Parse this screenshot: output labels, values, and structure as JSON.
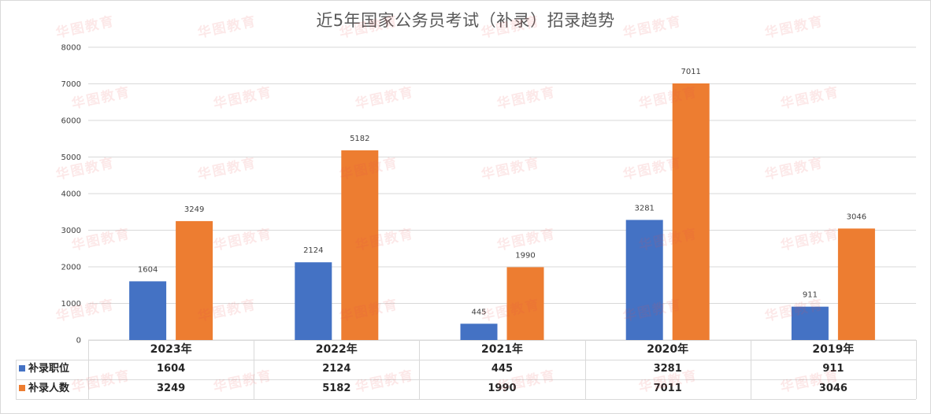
{
  "chart_data": {
    "type": "bar",
    "title": "近5年国家公务员考试（补录）招录趋势",
    "categories": [
      "2023年",
      "2022年",
      "2021年",
      "2020年",
      "2019年"
    ],
    "series": [
      {
        "name": "补录职位",
        "values": [
          1604,
          2124,
          445,
          3281,
          911
        ],
        "color": "#4472c4"
      },
      {
        "name": "补录人数",
        "values": [
          3249,
          5182,
          1990,
          7011,
          3046
        ],
        "color": "#ed7d31"
      }
    ],
    "ylim": [
      0,
      8000
    ],
    "yticks": [
      0,
      1000,
      2000,
      3000,
      4000,
      5000,
      6000,
      7000,
      8000
    ],
    "grid": true,
    "legend": "data-table"
  },
  "watermark": "华图教育"
}
